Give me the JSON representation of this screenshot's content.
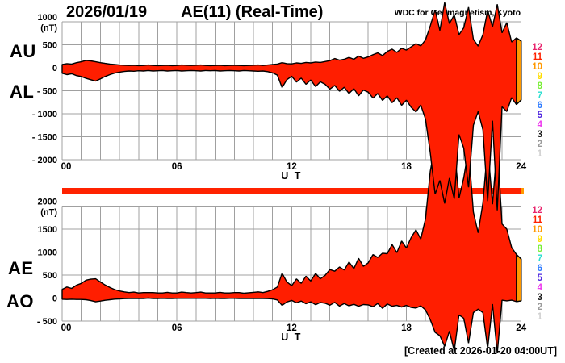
{
  "chart_data": {
    "type": "area",
    "title": "AE(11) (Real-Time)",
    "date": "2026/01/19",
    "credit": "WDC for Geomagnetism, Kyoto",
    "created_note": "[Created at 2026-01-20 04:00UT]",
    "xlabel": "U T",
    "xlim": [
      0,
      24
    ],
    "t_start": 0,
    "t_step_hours": 0.25,
    "grid": "on",
    "grid_color": "#a0a0a0",
    "fill_color": "#ff1e00",
    "edge_color": "#000000",
    "end_segment": {
      "from_hour": 23.75,
      "color": "#ff9900"
    },
    "x_ticks": [
      {
        "label": "00",
        "hour": 0
      },
      {
        "label": "06",
        "hour": 6
      },
      {
        "label": "12",
        "hour": 12
      },
      {
        "label": "18",
        "hour": 18
      },
      {
        "label": "24",
        "hour": 24
      }
    ],
    "panels": [
      {
        "id": "top",
        "left_labels": [
          "AU",
          "AL"
        ],
        "unit": "(nT)",
        "ylim": [
          -2000,
          1000
        ],
        "y_ticks": [
          {
            "label": "1000",
            "value": 1000
          },
          {
            "label": "500",
            "value": 500
          },
          {
            "label": "0",
            "value": 0
          },
          {
            "label": "- 500",
            "value": -500
          },
          {
            "label": "- 1000",
            "value": -1000
          },
          {
            "label": "- 1500",
            "value": -1500
          },
          {
            "label": "- 2000",
            "value": -2000
          }
        ],
        "series": [
          {
            "name": "AU",
            "values": [
              70,
              90,
              80,
              110,
              130,
              160,
              150,
              130,
              110,
              95,
              80,
              70,
              60,
              55,
              50,
              55,
              45,
              50,
              60,
              50,
              45,
              50,
              55,
              45,
              50,
              60,
              55,
              50,
              55,
              60,
              50,
              45,
              50,
              55,
              45,
              50,
              55,
              50,
              45,
              50,
              55,
              60,
              50,
              60,
              70,
              80,
              110,
              90,
              85,
              105,
              95,
              115,
              105,
              125,
              115,
              135,
              155,
              200,
              165,
              185,
              225,
              185,
              255,
              205,
              235,
              285,
              325,
              265,
              355,
              405,
              335,
              425,
              385,
              455,
              525,
              475,
              605,
              910,
              1260,
              810,
              1420,
              960,
              1150,
              720,
              870,
              1320,
              620,
              470,
              720,
              1250,
              890,
              1380,
              760,
              980,
              560,
              650,
              580
            ]
          },
          {
            "name": "AL",
            "values": [
              -120,
              -150,
              -130,
              -170,
              -190,
              -230,
              -260,
              -290,
              -240,
              -190,
              -150,
              -115,
              -95,
              -80,
              -70,
              -75,
              -65,
              -70,
              -60,
              -70,
              -65,
              -60,
              -70,
              -65,
              -60,
              -70,
              -65,
              -60,
              -65,
              -70,
              -60,
              -65,
              -60,
              -70,
              -65,
              -60,
              -65,
              -70,
              -60,
              -65,
              -70,
              -75,
              -70,
              -85,
              -110,
              -160,
              -430,
              -260,
              -185,
              -310,
              -225,
              -360,
              -265,
              -410,
              -305,
              -360,
              -465,
              -385,
              -510,
              -425,
              -560,
              -455,
              -610,
              -485,
              -530,
              -660,
              -560,
              -710,
              -610,
              -760,
              -655,
              -815,
              -705,
              -860,
              -960,
              -810,
              -1120,
              -1850,
              -2750,
              -2450,
              -2950,
              -2400,
              -2850,
              -1450,
              -1750,
              -2600,
              -1250,
              -950,
              -1350,
              -2900,
              -1150,
              -3100,
              -850,
              -950,
              -650,
              -800,
              -700
            ]
          }
        ]
      },
      {
        "id": "bottom",
        "left_labels": [
          "AE",
          "AO"
        ],
        "unit": "(nT)",
        "ylim": [
          -500,
          2000
        ],
        "y_ticks": [
          {
            "label": "2000",
            "value": 2000
          },
          {
            "label": "1500",
            "value": 1500
          },
          {
            "label": "1000",
            "value": 1000
          },
          {
            "label": "500",
            "value": 500
          },
          {
            "label": "0",
            "value": 0
          },
          {
            "label": "- 500",
            "value": -500
          }
        ],
        "series": [
          {
            "name": "AE",
            "values": [
              190,
              240,
              210,
              280,
              320,
              390,
              410,
              420,
              350,
              285,
              230,
              185,
              155,
              135,
              120,
              130,
              110,
              120,
              120,
              120,
              110,
              110,
              125,
              110,
              110,
              130,
              120,
              110,
              120,
              130,
              110,
              110,
              110,
              125,
              110,
              110,
              120,
              120,
              105,
              115,
              125,
              135,
              120,
              145,
              180,
              240,
              540,
              350,
              270,
              415,
              320,
              475,
              370,
              535,
              420,
              495,
              620,
              585,
              675,
              610,
              785,
              640,
              865,
              690,
              765,
              945,
              885,
              975,
              965,
              1165,
              990,
              1240,
              1090,
              1315,
              1485,
              1285,
              1725,
              2760,
              3350,
              3200,
              3350,
              3100,
              3300,
              2170,
              2620,
              3250,
              1870,
              1420,
              2070,
              3300,
              2040,
              3350,
              1610,
              1500,
              1100,
              950,
              850
            ]
          },
          {
            "name": "AO",
            "values": [
              -25,
              -30,
              -25,
              -30,
              -30,
              -35,
              -55,
              -80,
              -65,
              -48,
              -35,
              -23,
              -18,
              -13,
              -10,
              -10,
              -10,
              -10,
              0,
              -10,
              -10,
              -5,
              -8,
              -10,
              -5,
              -5,
              -5,
              -5,
              -5,
              -5,
              -5,
              -10,
              -5,
              -8,
              -10,
              -5,
              -5,
              -10,
              -8,
              -8,
              -8,
              -8,
              -10,
              -13,
              -20,
              -40,
              -160,
              -85,
              -50,
              -103,
              -65,
              -123,
              -80,
              -143,
              -95,
              -113,
              -155,
              -93,
              -173,
              -120,
              -168,
              -135,
              -178,
              -140,
              -148,
              -188,
              -118,
              -223,
              -128,
              -178,
              -160,
              -195,
              -160,
              -203,
              -218,
              -168,
              -258,
              -470,
              -745,
              -820,
              -1050,
              -720,
              -1150,
              -365,
              -440,
              -980,
              -315,
              -240,
              -315,
              -1100,
              -130,
              -1200,
              -45,
              -60,
              -45,
              -75,
              -60
            ]
          }
        ]
      }
    ],
    "station_legend": {
      "values": [
        "12",
        "11",
        "10",
        "9",
        "8",
        "7",
        "6",
        "5",
        "4",
        "3",
        "2",
        "1"
      ],
      "colors": [
        "#e8256d",
        "#ff2200",
        "#ff9900",
        "#ffdd00",
        "#77ee33",
        "#2bdfd0",
        "#2e7bff",
        "#5128e0",
        "#ee3bee",
        "#1a1a1a",
        "#9a9a9a",
        "#cfcfcf"
      ]
    },
    "station_bar": {
      "color": "#ff2200",
      "tip_color": "#ff9900"
    }
  }
}
